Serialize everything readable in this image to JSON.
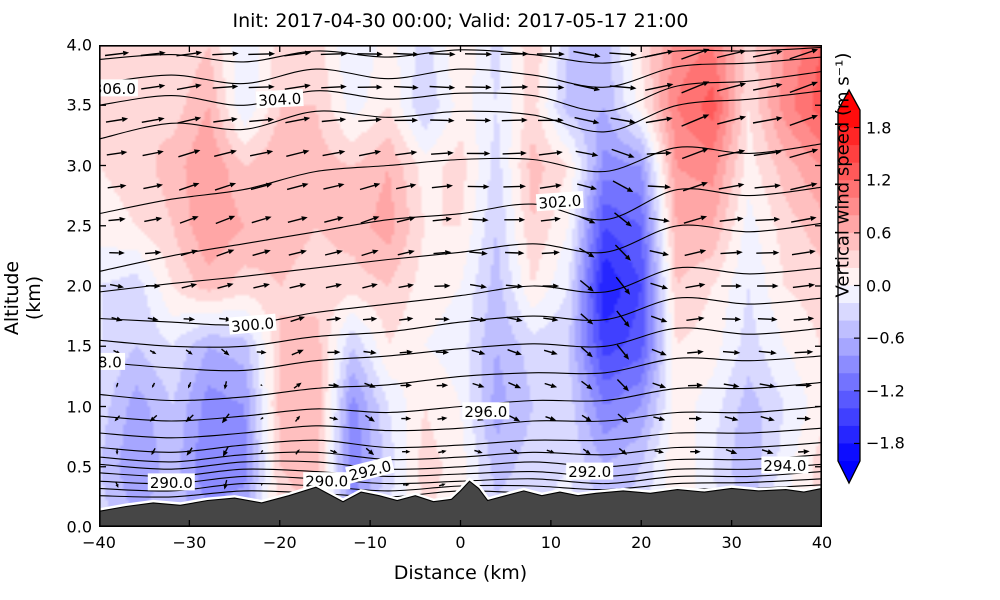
{
  "colors": {
    "terrain": "#464646",
    "contour": "#000000",
    "background": "#ffffff",
    "cmap_max_red": "#ff0000",
    "cmap_min_blue": "#0000ff"
  },
  "chart_data": {
    "type": "heatmap",
    "subtype": "filled-contour-cross-section with isentropes, wind quiver, terrain",
    "title": "Init: 2017-04-30 00:00; Valid: 2017-05-17 21:00",
    "xlabel": "Distance (km)",
    "ylabel": "Altitude (km)",
    "xlim": [
      -40,
      40
    ],
    "ylim": [
      0,
      4
    ],
    "xticks": {
      "values": [
        -40,
        -30,
        -20,
        -10,
        0,
        10,
        20,
        30,
        40
      ],
      "labels": [
        "−40",
        "−30",
        "−20",
        "−10",
        "0",
        "10",
        "20",
        "30",
        "40"
      ]
    },
    "yticks": {
      "values": [
        0,
        0.5,
        1,
        1.5,
        2,
        2.5,
        3,
        3.5,
        4
      ],
      "labels": [
        "0.0",
        "0.5",
        "1.0",
        "1.5",
        "2.0",
        "2.5",
        "3.0",
        "3.5",
        "4.0"
      ]
    },
    "grid": false,
    "colorbar": {
      "label": "Vertical wind speed (m s⁻¹)",
      "cmap": "bwr",
      "vmin": -2.0,
      "vmax": 2.0,
      "level_step": 0.2,
      "extend": "both",
      "tick_values": [
        1.8,
        1.2,
        0.6,
        0.0,
        -0.6,
        -1.2,
        -1.8
      ],
      "tick_labels": [
        "1.8",
        "1.2",
        "0.6",
        "0.0",
        "−0.6",
        "−1.2",
        "−1.8"
      ]
    },
    "w_field": {
      "units": "m s-1",
      "x": [
        -40,
        -36,
        -32,
        -28,
        -24,
        -20,
        -16,
        -12,
        -8,
        -4,
        0,
        4,
        8,
        12,
        16,
        20,
        24,
        28,
        32,
        36,
        40
      ],
      "z": [
        0,
        0.5,
        1,
        1.5,
        2,
        2.5,
        3,
        3.5,
        4
      ],
      "values": [
        [
          -0.3,
          -0.6,
          -0.4,
          -0.7,
          -0.6,
          0.3,
          0.4,
          -0.7,
          -0.2,
          0.2,
          0.1,
          -0.3,
          -0.2,
          -0.1,
          -0.4,
          -0.3,
          0.1,
          -0.1,
          -0.4,
          0.0,
          0.2
        ],
        [
          -0.4,
          -0.8,
          -0.5,
          -1.0,
          -0.9,
          0.4,
          0.5,
          -1.0,
          -0.3,
          0.3,
          0.1,
          -0.5,
          -0.3,
          -0.2,
          -0.6,
          -0.4,
          0.2,
          -0.2,
          -0.6,
          -0.1,
          0.3
        ],
        [
          -0.3,
          -0.7,
          -0.4,
          -0.9,
          -0.8,
          0.5,
          0.6,
          -0.9,
          -0.2,
          0.2,
          0.0,
          -0.7,
          -0.4,
          -0.3,
          -1.0,
          -0.8,
          0.1,
          -0.1,
          -0.5,
          -0.2,
          0.1
        ],
        [
          -0.2,
          -0.4,
          -0.2,
          -0.6,
          -0.5,
          0.4,
          0.5,
          -0.4,
          0.2,
          0.0,
          -0.1,
          -0.6,
          -0.3,
          -0.4,
          -1.5,
          -1.3,
          0.2,
          0.1,
          -0.3,
          0.0,
          0.2
        ],
        [
          -0.2,
          -0.3,
          0.2,
          0.5,
          0.3,
          0.4,
          0.3,
          0.3,
          0.4,
          0.1,
          0.0,
          -0.5,
          0.2,
          -0.2,
          -1.8,
          -1.4,
          0.4,
          0.2,
          -0.2,
          0.2,
          0.3
        ],
        [
          0.1,
          0.2,
          0.4,
          0.8,
          0.6,
          0.5,
          0.4,
          0.5,
          0.7,
          0.2,
          0.2,
          -0.4,
          0.4,
          0.0,
          -1.4,
          -1.2,
          0.6,
          0.6,
          -0.1,
          0.3,
          0.5
        ],
        [
          0.2,
          0.3,
          0.5,
          0.8,
          0.4,
          0.6,
          0.5,
          0.4,
          0.6,
          0.1,
          0.3,
          -0.3,
          0.5,
          0.2,
          -0.9,
          -0.8,
          0.8,
          0.9,
          0.1,
          0.5,
          0.8
        ],
        [
          0.3,
          0.4,
          0.3,
          0.6,
          -0.2,
          0.4,
          0.4,
          -0.1,
          0.2,
          -0.4,
          0.1,
          -0.2,
          0.3,
          -0.5,
          -0.6,
          0.1,
          1.0,
          1.3,
          0.2,
          0.9,
          1.3
        ],
        [
          0.2,
          0.3,
          0.2,
          0.4,
          -0.2,
          0.3,
          0.3,
          -0.2,
          0.1,
          -0.3,
          0.2,
          -0.3,
          0.4,
          -0.4,
          -0.5,
          0.2,
          0.9,
          1.0,
          0.3,
          0.8,
          1.2
        ]
      ]
    },
    "u_field": {
      "units": "m s-1",
      "x": [
        -40,
        -32,
        -24,
        -16,
        -8,
        0,
        8,
        16,
        24,
        32,
        40
      ],
      "z": [
        0,
        0.5,
        1,
        1.5,
        2,
        2.5,
        3,
        3.5,
        4
      ],
      "values": [
        [
          2,
          2,
          2,
          3,
          3,
          3,
          3,
          3,
          4,
          4,
          4
        ],
        [
          3,
          -3,
          -3,
          4,
          5,
          5,
          5,
          4,
          6,
          7,
          7
        ],
        [
          -4,
          -6,
          -5,
          6,
          7,
          7,
          8,
          7,
          9,
          10,
          10
        ],
        [
          6,
          5,
          7,
          9,
          9,
          9,
          10,
          7,
          11,
          12,
          13
        ],
        [
          9,
          10,
          11,
          11,
          10,
          11,
          12,
          8,
          13,
          14,
          15
        ],
        [
          11,
          12,
          13,
          13,
          12,
          13,
          14,
          10,
          15,
          16,
          17
        ],
        [
          13,
          14,
          15,
          15,
          14,
          15,
          16,
          14,
          17,
          18,
          19
        ],
        [
          15,
          16,
          17,
          17,
          16,
          17,
          18,
          17,
          19,
          20,
          21
        ],
        [
          16,
          17,
          18,
          18,
          17,
          18,
          19,
          18,
          20,
          21,
          22
        ]
      ]
    },
    "arrow_grid": {
      "x_start": -38,
      "x_step": 4,
      "x_count": 20,
      "z_start": 0.35,
      "z_step": 0.275,
      "z_count": 14
    },
    "isentropes": {
      "units": "K",
      "x": [
        -40,
        -32,
        -24,
        -16,
        -8,
        0,
        8,
        16,
        24,
        32,
        40
      ],
      "levels": [
        {
          "level": 307,
          "z": [
            3.88,
            3.92,
            3.86,
            3.95,
            3.9,
            3.96,
            3.92,
            3.85,
            3.95,
            3.95,
            3.98
          ]
        },
        {
          "level": 306,
          "z": [
            3.68,
            3.75,
            3.68,
            3.8,
            3.72,
            3.8,
            3.75,
            3.65,
            3.82,
            3.85,
            3.9
          ]
        },
        {
          "level": 305,
          "z": [
            3.5,
            3.58,
            3.5,
            3.62,
            3.55,
            3.6,
            3.58,
            3.45,
            3.66,
            3.7,
            3.78
          ]
        },
        {
          "level": 304,
          "z": [
            3.22,
            3.35,
            3.3,
            3.45,
            3.4,
            3.45,
            3.42,
            3.28,
            3.5,
            3.55,
            3.62
          ]
        },
        {
          "level": 303,
          "z": [
            2.6,
            2.72,
            2.8,
            2.95,
            3.0,
            3.05,
            3.05,
            2.95,
            3.15,
            3.1,
            3.18
          ]
        },
        {
          "level": 302,
          "z": [
            2.12,
            2.25,
            2.35,
            2.45,
            2.55,
            2.6,
            2.68,
            2.55,
            2.8,
            2.75,
            2.82
          ]
        },
        {
          "level": 301,
          "z": [
            1.95,
            2.02,
            2.08,
            2.15,
            2.22,
            2.28,
            2.35,
            2.28,
            2.5,
            2.45,
            2.52
          ]
        },
        {
          "level": 300,
          "z": [
            1.73,
            1.7,
            1.68,
            1.78,
            1.85,
            1.92,
            2.0,
            1.95,
            2.15,
            2.1,
            2.15
          ]
        },
        {
          "level": 299,
          "z": [
            1.55,
            1.5,
            1.5,
            1.58,
            1.62,
            1.7,
            1.75,
            1.72,
            1.9,
            1.85,
            1.9
          ]
        },
        {
          "level": 298,
          "z": [
            1.37,
            1.32,
            1.3,
            1.38,
            1.42,
            1.48,
            1.52,
            1.5,
            1.65,
            1.6,
            1.65
          ]
        },
        {
          "level": 297,
          "z": [
            1.1,
            1.05,
            1.08,
            1.15,
            1.18,
            1.25,
            1.28,
            1.28,
            1.4,
            1.38,
            1.42
          ]
        },
        {
          "level": 296,
          "z": [
            0.92,
            0.88,
            0.92,
            0.98,
            0.95,
            1.0,
            1.05,
            1.05,
            1.15,
            1.15,
            1.2
          ]
        },
        {
          "level": 295,
          "z": [
            0.78,
            0.74,
            0.78,
            0.84,
            0.8,
            0.82,
            0.88,
            0.88,
            0.95,
            0.95,
            1.0
          ]
        },
        {
          "level": 294,
          "z": [
            0.66,
            0.62,
            0.68,
            0.72,
            0.66,
            0.68,
            0.72,
            0.72,
            0.78,
            0.78,
            0.82
          ]
        },
        {
          "level": 293,
          "z": [
            0.58,
            0.54,
            0.6,
            0.62,
            0.56,
            0.58,
            0.62,
            0.6,
            0.66,
            0.66,
            0.7
          ]
        },
        {
          "level": 292,
          "z": [
            0.52,
            0.48,
            0.54,
            0.54,
            0.48,
            0.5,
            0.54,
            0.5,
            0.56,
            0.56,
            0.6
          ]
        },
        {
          "level": 291,
          "z": [
            0.45,
            0.42,
            0.48,
            0.46,
            0.42,
            0.44,
            0.46,
            0.42,
            0.48,
            0.48,
            0.52
          ]
        },
        {
          "level": 290,
          "z": [
            0.38,
            0.36,
            0.42,
            0.4,
            0.36,
            0.38,
            0.4,
            0.36,
            0.42,
            0.42,
            0.46
          ]
        },
        {
          "level": 289,
          "z": [
            0.32,
            0.3,
            0.36,
            0.34,
            0.3,
            0.34,
            0.34,
            0.31,
            0.36,
            0.37,
            0.4
          ]
        },
        {
          "level": 288,
          "z": [
            0.26,
            0.25,
            0.3,
            0.28,
            0.25,
            0.3,
            0.28,
            0.27,
            0.31,
            0.32,
            0.35
          ]
        }
      ]
    },
    "contour_labels": [
      {
        "text": "306.0",
        "x": -38.3,
        "z": 3.64,
        "rot": 0
      },
      {
        "text": "304.0",
        "x": -20.0,
        "z": 3.55,
        "rot": -3
      },
      {
        "text": "302.0",
        "x": 11.0,
        "z": 2.7,
        "rot": -4
      },
      {
        "text": "300.0",
        "x": -23.0,
        "z": 1.68,
        "rot": -5
      },
      {
        "text": "8.0",
        "x": -38.8,
        "z": 1.37,
        "rot": 0
      },
      {
        "text": "296.0",
        "x": 2.8,
        "z": 0.96,
        "rot": 0
      },
      {
        "text": "290.0",
        "x": -32.0,
        "z": 0.37,
        "rot": 0
      },
      {
        "text": "290.0",
        "x": -14.8,
        "z": 0.38,
        "rot": 0
      },
      {
        "text": "292.0",
        "x": -10.0,
        "z": 0.47,
        "rot": -14
      },
      {
        "text": "292.0",
        "x": 14.3,
        "z": 0.46,
        "rot": 0
      },
      {
        "text": "294.0",
        "x": 35.9,
        "z": 0.51,
        "rot": 0
      }
    ],
    "terrain": {
      "x": [
        -40,
        -37,
        -34,
        -31,
        -28,
        -25,
        -22,
        -19,
        -16,
        -13,
        -11,
        -9,
        -7,
        -5,
        -3,
        -1,
        0,
        1,
        2,
        3,
        5,
        7,
        9,
        11,
        13,
        15,
        18,
        21,
        24,
        27,
        30,
        33,
        36,
        38,
        40
      ],
      "elev": [
        0.13,
        0.17,
        0.2,
        0.18,
        0.22,
        0.24,
        0.2,
        0.26,
        0.33,
        0.21,
        0.29,
        0.26,
        0.22,
        0.26,
        0.21,
        0.23,
        0.3,
        0.38,
        0.32,
        0.22,
        0.26,
        0.3,
        0.26,
        0.29,
        0.26,
        0.28,
        0.3,
        0.28,
        0.31,
        0.29,
        0.32,
        0.3,
        0.31,
        0.29,
        0.32
      ]
    }
  }
}
